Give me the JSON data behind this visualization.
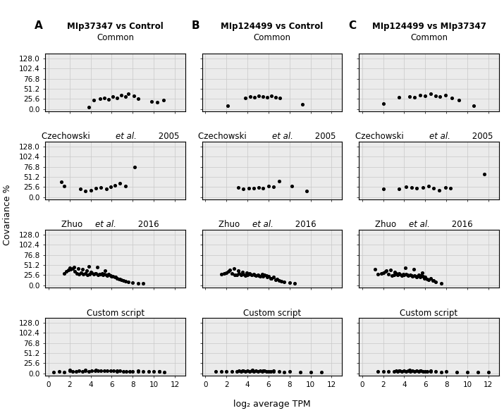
{
  "col_letters": [
    "A",
    "B",
    "C"
  ],
  "col_main": [
    "MIp37347 vs Control",
    "MIp124499 vs Control",
    "MIp124499 vs MIp37347"
  ],
  "row_titles": [
    {
      "pre": "Common",
      "italic": "",
      "post": ""
    },
    {
      "pre": "Czechowski ",
      "italic": "et al.",
      "post": " 2005"
    },
    {
      "pre": "Zhuo ",
      "italic": "et al.",
      "post": " 2016"
    },
    {
      "pre": "Custom script",
      "italic": "",
      "post": ""
    }
  ],
  "xlabel": "log₂ average TPM",
  "ylabel": "Covariance %",
  "ytick_vals": [
    0.0,
    25.6,
    51.2,
    76.8,
    102.4,
    128.0
  ],
  "ytick_labels": [
    "0.0",
    "25.6",
    "51.2",
    "76.8",
    "102.4",
    "128.0"
  ],
  "xtick_vals": [
    0,
    2,
    4,
    6,
    8,
    10,
    12
  ],
  "xtick_labels": [
    "0",
    "2",
    "4",
    "6",
    "8",
    "10",
    "12"
  ],
  "xlim": [
    -0.3,
    13.0
  ],
  "ylim": [
    -6.5,
    140
  ],
  "scatter_data": {
    "row0_col0": {
      "x": [
        3.8,
        4.3,
        4.9,
        5.3,
        5.7,
        6.1,
        6.5,
        6.9,
        7.3,
        7.6,
        8.1,
        8.5,
        9.8,
        10.3,
        10.9
      ],
      "y": [
        5.0,
        22.0,
        26.0,
        28.0,
        25.0,
        32.0,
        28.0,
        35.0,
        32.0,
        38.0,
        33.0,
        27.0,
        20.0,
        18.0,
        22.0
      ]
    },
    "row0_col1": {
      "x": [
        2.1,
        3.8,
        4.3,
        4.7,
        5.1,
        5.5,
        5.9,
        6.3,
        6.7,
        7.1,
        9.2
      ],
      "y": [
        8.0,
        28.0,
        32.0,
        30.0,
        34.0,
        32.0,
        30.0,
        33.0,
        30.0,
        28.0,
        12.0
      ]
    },
    "row0_col2": {
      "x": [
        2.0,
        3.5,
        4.5,
        5.0,
        5.5,
        6.0,
        6.5,
        7.0,
        7.4,
        7.9,
        8.5,
        9.2,
        10.6
      ],
      "y": [
        14.0,
        30.0,
        32.0,
        30.0,
        36.0,
        34.0,
        38.0,
        34.0,
        32.0,
        36.0,
        28.0,
        22.0,
        8.0
      ]
    },
    "row1_col0": {
      "x": [
        1.2,
        1.5,
        3.0,
        3.5,
        4.0,
        4.5,
        5.0,
        5.5,
        5.9,
        6.3,
        6.8,
        7.3,
        8.2
      ],
      "y": [
        38.0,
        28.0,
        20.0,
        16.0,
        18.0,
        22.0,
        25.0,
        20.0,
        26.0,
        30.0,
        35.0,
        28.0,
        76.0
      ]
    },
    "row1_col1": {
      "x": [
        3.1,
        3.6,
        4.1,
        4.6,
        5.1,
        5.5,
        6.0,
        6.5,
        7.0,
        8.2,
        9.6
      ],
      "y": [
        24.0,
        20.0,
        22.0,
        22.0,
        24.0,
        22.0,
        28.0,
        26.0,
        40.0,
        28.0,
        15.0
      ]
    },
    "row1_col2": {
      "x": [
        2.0,
        3.5,
        4.2,
        4.7,
        5.2,
        5.8,
        6.3,
        6.8,
        7.3,
        7.9,
        8.4,
        11.6
      ],
      "y": [
        20.0,
        20.0,
        26.0,
        24.0,
        22.0,
        25.0,
        28.0,
        22.0,
        18.0,
        24.0,
        22.0,
        58.0
      ]
    },
    "row2_col0": {
      "x": [
        1.5,
        1.7,
        1.9,
        2.1,
        2.3,
        2.5,
        2.7,
        2.9,
        3.1,
        3.3,
        3.5,
        3.7,
        3.9,
        4.1,
        4.3,
        4.5,
        4.7,
        4.9,
        5.1,
        5.3,
        5.5,
        5.7,
        5.9,
        6.1,
        6.3,
        6.5,
        6.7,
        6.9,
        7.1,
        7.3,
        7.6,
        8.0,
        8.5,
        9.0,
        2.0,
        2.4,
        2.8,
        3.2,
        3.6,
        4.0,
        4.4,
        4.8,
        5.2,
        5.6,
        6.0,
        6.4,
        6.8,
        3.8,
        4.6,
        5.4
      ],
      "y": [
        30,
        35,
        38,
        40,
        42,
        35,
        30,
        28,
        32,
        28,
        30,
        26,
        28,
        32,
        28,
        30,
        26,
        28,
        30,
        28,
        26,
        28,
        25,
        22,
        20,
        18,
        16,
        14,
        12,
        10,
        8,
        6,
        5,
        4,
        44,
        46,
        42,
        40,
        36,
        34,
        30,
        28,
        26,
        24,
        22,
        20,
        15,
        48,
        46,
        36
      ]
    },
    "row2_col1": {
      "x": [
        1.5,
        1.8,
        2.0,
        2.2,
        2.5,
        2.8,
        3.0,
        3.2,
        3.4,
        3.6,
        3.8,
        4.0,
        4.2,
        4.4,
        4.6,
        4.8,
        5.0,
        5.2,
        5.4,
        5.6,
        5.8,
        6.0,
        6.2,
        6.5,
        6.8,
        7.0,
        7.2,
        7.5,
        8.0,
        8.5,
        2.3,
        2.7,
        3.1,
        3.5,
        3.9,
        4.3,
        4.7,
        5.1,
        5.5,
        5.9,
        6.3,
        6.7
      ],
      "y": [
        28,
        30,
        32,
        35,
        30,
        26,
        26,
        30,
        26,
        28,
        24,
        26,
        30,
        26,
        28,
        24,
        26,
        22,
        28,
        26,
        24,
        22,
        18,
        20,
        15,
        12,
        10,
        8,
        6,
        5,
        38,
        42,
        36,
        34,
        32,
        28,
        26,
        24,
        22,
        20,
        18,
        14
      ]
    },
    "row2_col2": {
      "x": [
        1.5,
        1.8,
        2.0,
        2.2,
        2.5,
        2.8,
        3.0,
        3.2,
        3.4,
        3.6,
        3.8,
        4.0,
        4.2,
        4.4,
        4.6,
        4.8,
        5.0,
        5.2,
        5.4,
        5.6,
        5.8,
        6.0,
        6.2,
        6.5,
        6.8,
        7.0,
        7.5,
        2.3,
        2.7,
        3.1,
        3.5,
        3.9,
        4.3,
        4.7,
        5.1,
        5.5,
        5.9,
        6.3,
        1.2,
        4.1,
        4.9,
        5.7,
        6.7
      ],
      "y": [
        28,
        30,
        32,
        35,
        28,
        24,
        26,
        30,
        26,
        28,
        24,
        26,
        28,
        24,
        26,
        22,
        24,
        20,
        26,
        24,
        22,
        20,
        16,
        18,
        12,
        8,
        5,
        36,
        38,
        34,
        30,
        28,
        26,
        24,
        22,
        20,
        18,
        14,
        40,
        44,
        40,
        32,
        12
      ]
    },
    "row3_col0": {
      "x": [
        0.5,
        1.0,
        1.5,
        2.0,
        2.3,
        2.6,
        2.9,
        3.2,
        3.5,
        3.8,
        4.1,
        4.4,
        4.7,
        5.0,
        5.3,
        5.6,
        5.9,
        6.2,
        6.5,
        6.8,
        7.1,
        7.4,
        7.7,
        8.0,
        8.5,
        9.0,
        9.5,
        10.0,
        10.5,
        11.0,
        2.0,
        3.5,
        4.5,
        6.5,
        8.5,
        10.5
      ],
      "y": [
        3,
        5,
        3,
        6,
        4,
        5,
        6,
        5,
        6,
        5,
        6,
        7,
        6,
        7,
        6,
        7,
        6,
        6,
        5,
        6,
        5,
        5,
        4,
        5,
        4,
        4,
        5,
        4,
        4,
        3,
        9,
        8,
        9,
        7,
        6,
        5
      ]
    },
    "row3_col1": {
      "x": [
        1.0,
        1.5,
        2.0,
        2.5,
        3.0,
        3.2,
        3.4,
        3.6,
        3.8,
        4.0,
        4.2,
        4.4,
        4.6,
        4.8,
        5.0,
        5.2,
        5.4,
        5.6,
        5.8,
        6.0,
        6.2,
        6.5,
        7.0,
        7.5,
        8.0,
        9.0,
        10.0,
        11.0,
        3.5,
        4.5,
        5.5,
        6.5
      ],
      "y": [
        4,
        4,
        5,
        4,
        5,
        6,
        5,
        6,
        5,
        6,
        5,
        6,
        5,
        6,
        5,
        6,
        5,
        6,
        5,
        4,
        5,
        4,
        4,
        3,
        4,
        3,
        3,
        2,
        7,
        8,
        7,
        6
      ]
    },
    "row3_col2": {
      "x": [
        1.5,
        2.0,
        2.5,
        3.0,
        3.2,
        3.4,
        3.6,
        3.8,
        4.0,
        4.2,
        4.4,
        4.6,
        4.8,
        5.0,
        5.2,
        5.4,
        5.6,
        5.8,
        6.0,
        6.2,
        6.5,
        7.0,
        7.5,
        8.0,
        9.0,
        10.0,
        11.0,
        3.5,
        4.5,
        5.5,
        6.5,
        12.0
      ],
      "y": [
        4,
        5,
        4,
        5,
        6,
        5,
        6,
        5,
        6,
        5,
        6,
        5,
        6,
        5,
        6,
        5,
        6,
        5,
        4,
        5,
        4,
        4,
        3,
        4,
        3,
        3,
        2,
        7,
        8,
        7,
        6,
        3
      ]
    }
  },
  "marker_size": 7,
  "marker_color": "black",
  "grid_color": "#c8c8c8",
  "bg_color": "white",
  "panel_bg": "#ebebeb",
  "title_fontsize": 8.5,
  "tick_fontsize": 7.5,
  "label_fontsize": 9,
  "col_letter_fontsize": 11
}
